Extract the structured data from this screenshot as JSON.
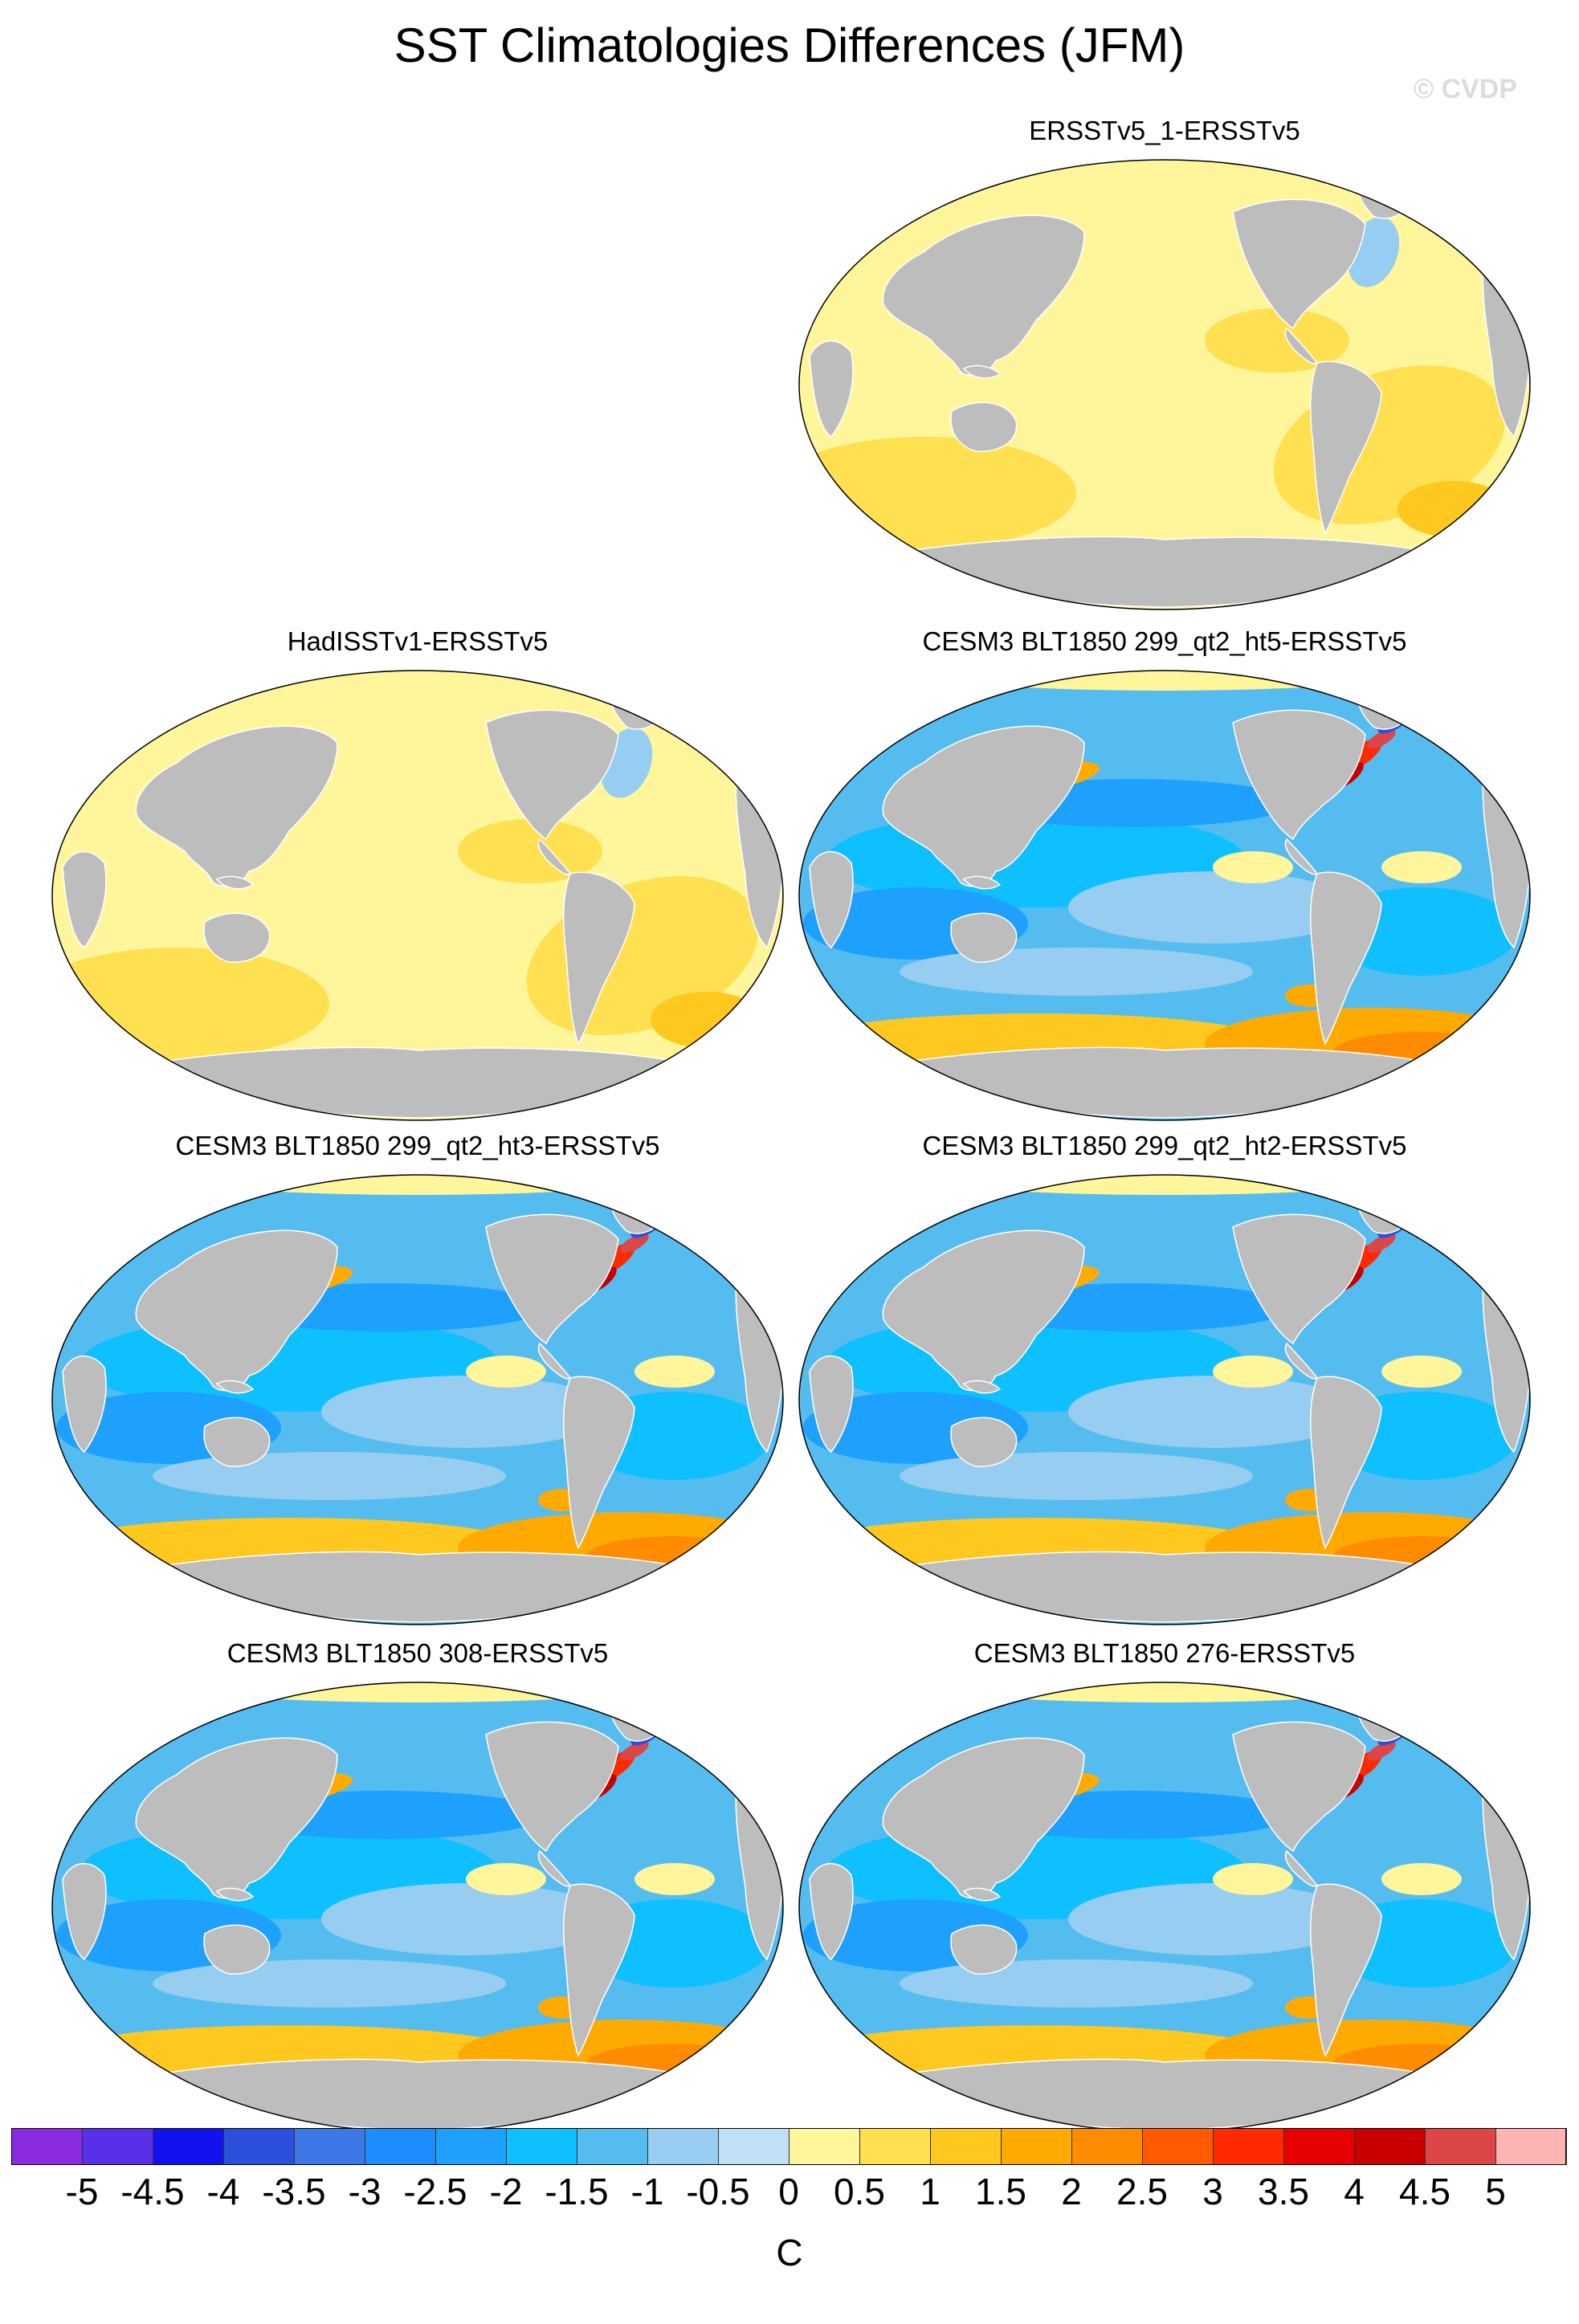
{
  "title": "SST Climatologies Differences (JFM)",
  "watermark": "© CVDP",
  "panels": [
    {
      "title": "ERSSTv5_1-ERSSTv5",
      "pattern": "uniform-warm"
    },
    {
      "title": "HadISSTv1-ERSSTv5",
      "pattern": "uniform-warm"
    },
    {
      "title": "CESM3 BLT1850 299_qt2_ht5-ERSSTv5",
      "pattern": "model-bias"
    },
    {
      "title": "CESM3 BLT1850 299_qt2_ht3-ERSSTv5",
      "pattern": "model-bias"
    },
    {
      "title": "CESM3 BLT1850 299_qt2_ht2-ERSSTv5",
      "pattern": "model-bias"
    },
    {
      "title": "CESM3 BLT1850 308-ERSSTv5",
      "pattern": "model-bias"
    },
    {
      "title": "CESM3 BLT1850 276-ERSSTv5",
      "pattern": "model-bias"
    }
  ],
  "colorbar": {
    "unit": "C",
    "labels": [
      "-5",
      "-4.5",
      "-4",
      "-3.5",
      "-3",
      "-2.5",
      "-2",
      "-1.5",
      "-1",
      "-0.5",
      "0",
      "0.5",
      "1",
      "1.5",
      "2",
      "2.5",
      "3",
      "3.5",
      "4",
      "4.5",
      "5"
    ],
    "colors": [
      "#8a2be2",
      "#5a2fe8",
      "#1212f0",
      "#2a50dc",
      "#3c78e6",
      "#1e8cff",
      "#1ea0ff",
      "#0ec0ff",
      "#55bcf0",
      "#96cdf0",
      "#bfe0f5",
      "#fff59a",
      "#ffe050",
      "#ffc81e",
      "#ffaa00",
      "#ff8c00",
      "#ff5a00",
      "#ff2a00",
      "#e60000",
      "#c80000",
      "#dc4646",
      "#ffb4b4"
    ]
  },
  "colors": {
    "land": "#bdbdbd",
    "ocean_neutral_warm": "#fff59a",
    "ocean_cold": "#96cdf0"
  }
}
